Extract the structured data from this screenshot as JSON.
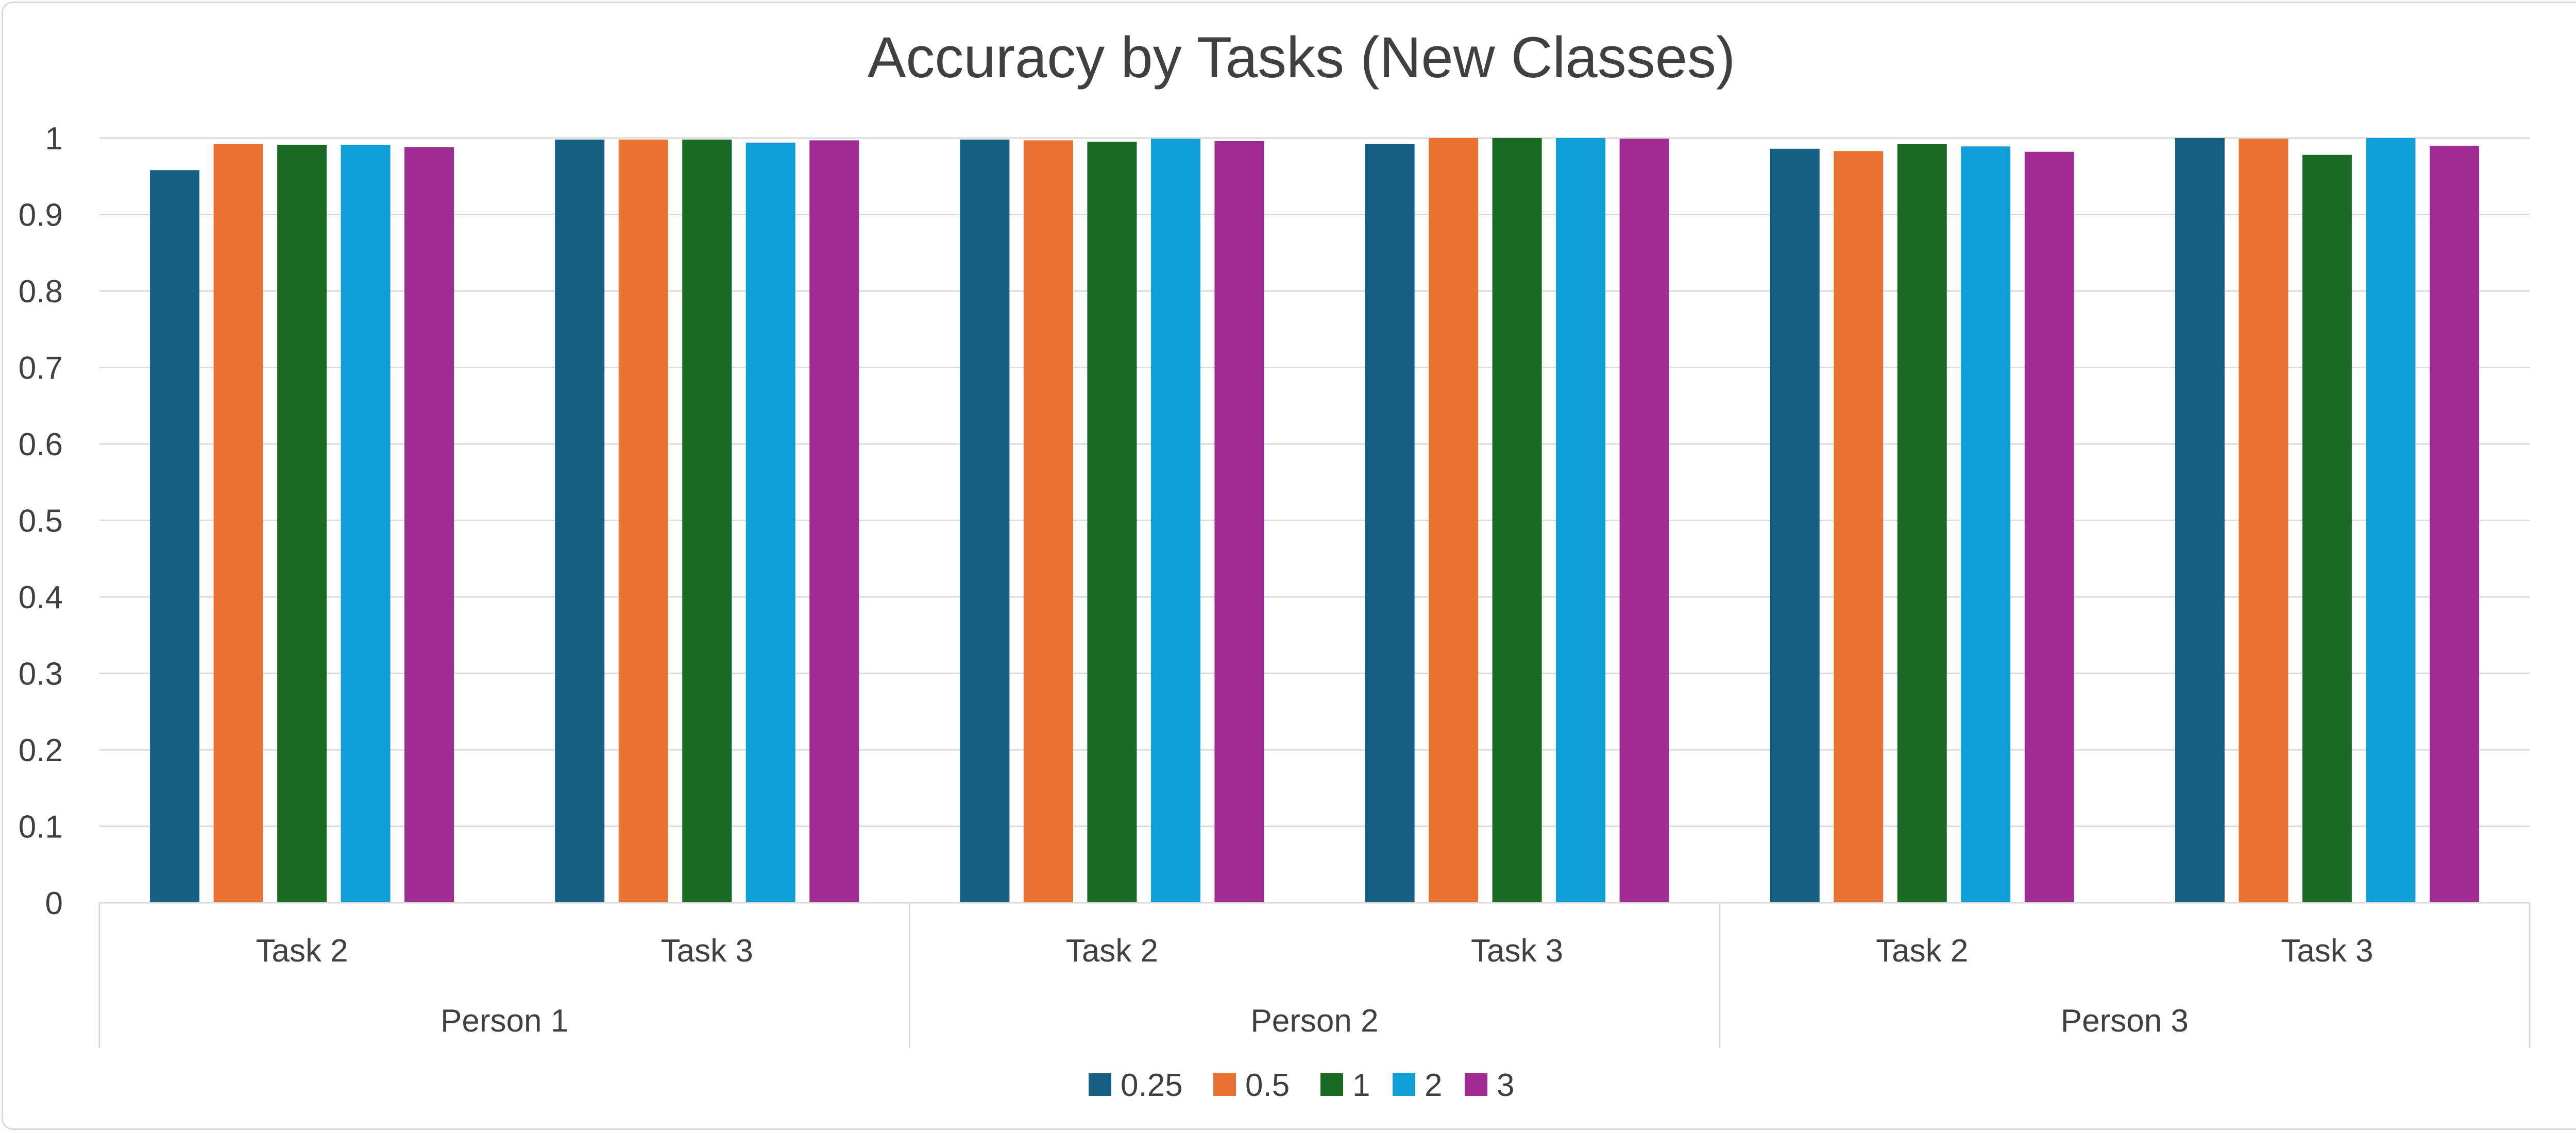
{
  "chart_data": {
    "type": "bar",
    "title": "Accuracy by Tasks (New Classes)",
    "xlabel": "",
    "ylabel": "",
    "ylim": [
      0,
      1
    ],
    "yticks": [
      "0",
      "0.1",
      "0.2",
      "0.3",
      "0.4",
      "0.5",
      "0.6",
      "0.7",
      "0.8",
      "0.9",
      "1"
    ],
    "grid": true,
    "legend_position": "bottom",
    "groups": [
      "Person 1",
      "Person 2",
      "Person 3"
    ],
    "categories": [
      "Task 2",
      "Task 3",
      "Task 2",
      "Task 3",
      "Task 2",
      "Task 3"
    ],
    "series": [
      {
        "name": "0.25",
        "color": "#156082",
        "values": [
          0.958,
          0.998,
          0.998,
          0.992,
          0.986,
          1.0
        ]
      },
      {
        "name": "0.5",
        "color": "#E97132",
        "values": [
          0.992,
          0.998,
          0.997,
          1.0,
          0.983,
          0.999
        ]
      },
      {
        "name": "1",
        "color": "#196B24",
        "values": [
          0.991,
          0.998,
          0.995,
          1.0,
          0.992,
          0.978
        ]
      },
      {
        "name": "2",
        "color": "#0F9ED5",
        "values": [
          0.991,
          0.994,
          0.999,
          1.0,
          0.989,
          1.0
        ]
      },
      {
        "name": "3",
        "color": "#A02B93",
        "values": [
          0.988,
          0.997,
          0.996,
          0.999,
          0.982,
          0.99
        ]
      }
    ]
  }
}
